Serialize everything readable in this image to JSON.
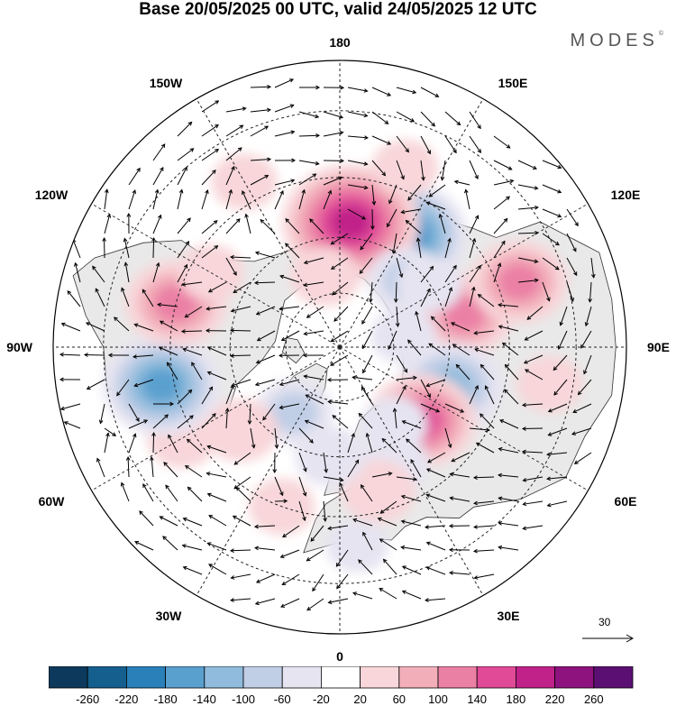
{
  "title": "Base 20/05/2025 00 UTC, valid 24/05/2025 12 UTC",
  "brand": "MODES",
  "brand_mark": "©",
  "longitude_labels": {
    "top": "180",
    "bottom": "0",
    "left": "90W",
    "right": "90E",
    "upper_left_1": "150W",
    "upper_left_2": "120W",
    "upper_right_1": "150E",
    "upper_right_2": "120E",
    "lower_left_1": "60W",
    "lower_left_2": "30W",
    "lower_right_1": "60E",
    "lower_right_2": "30E"
  },
  "reference_vector": {
    "value": "30"
  },
  "colorbar": {
    "colors": [
      "#0d3a5c",
      "#155f8e",
      "#2a80b9",
      "#5aa0cf",
      "#90bbdc",
      "#c0cee6",
      "#e6e4f1",
      "#ffffff",
      "#f8d6d9",
      "#f2aeb9",
      "#eb80a5",
      "#e04a97",
      "#c0228a",
      "#8e137e",
      "#5b0f72"
    ],
    "ticks": [
      "-260",
      "-220",
      "-180",
      "-140",
      "-100",
      "-60",
      "-20",
      "20",
      "60",
      "100",
      "140",
      "180",
      "220",
      "260"
    ]
  },
  "anomalies": [
    {
      "lon": 150,
      "lat": 55,
      "value": -190
    },
    {
      "lon": 175,
      "lat": 56,
      "value": 220
    },
    {
      "lon": -168,
      "lat": 70,
      "value": 50
    },
    {
      "lon": 135,
      "lat": 64,
      "value": -70
    },
    {
      "lon": 105,
      "lat": 55,
      "value": 120
    },
    {
      "lon": 125,
      "lat": 60,
      "value": -40
    },
    {
      "lon": 110,
      "lat": 40,
      "value": 120
    },
    {
      "lon": 70,
      "lat": 58,
      "value": -140
    },
    {
      "lon": 48,
      "lat": 60,
      "value": 150
    },
    {
      "lon": 35,
      "lat": 64,
      "value": -40
    },
    {
      "lon": 25,
      "lat": 55,
      "value": -50
    },
    {
      "lon": 15,
      "lat": 50,
      "value": 60
    },
    {
      "lon": -5,
      "lat": 60,
      "value": -50
    },
    {
      "lon": -35,
      "lat": 68,
      "value": -70
    },
    {
      "lon": -50,
      "lat": 55,
      "value": 60
    },
    {
      "lon": -60,
      "lat": 42,
      "value": 50
    },
    {
      "lon": -78,
      "lat": 42,
      "value": -170
    },
    {
      "lon": -105,
      "lat": 45,
      "value": 130
    },
    {
      "lon": -120,
      "lat": 50,
      "value": 40
    },
    {
      "lon": -20,
      "lat": 45,
      "value": 40
    },
    {
      "lon": 5,
      "lat": 38,
      "value": -30
    },
    {
      "lon": -150,
      "lat": 40,
      "value": 40
    },
    {
      "lon": 160,
      "lat": 40,
      "value": 40
    },
    {
      "lon": 80,
      "lat": 35,
      "value": 40
    },
    {
      "lon": 100,
      "lat": 72,
      "value": -40
    }
  ]
}
